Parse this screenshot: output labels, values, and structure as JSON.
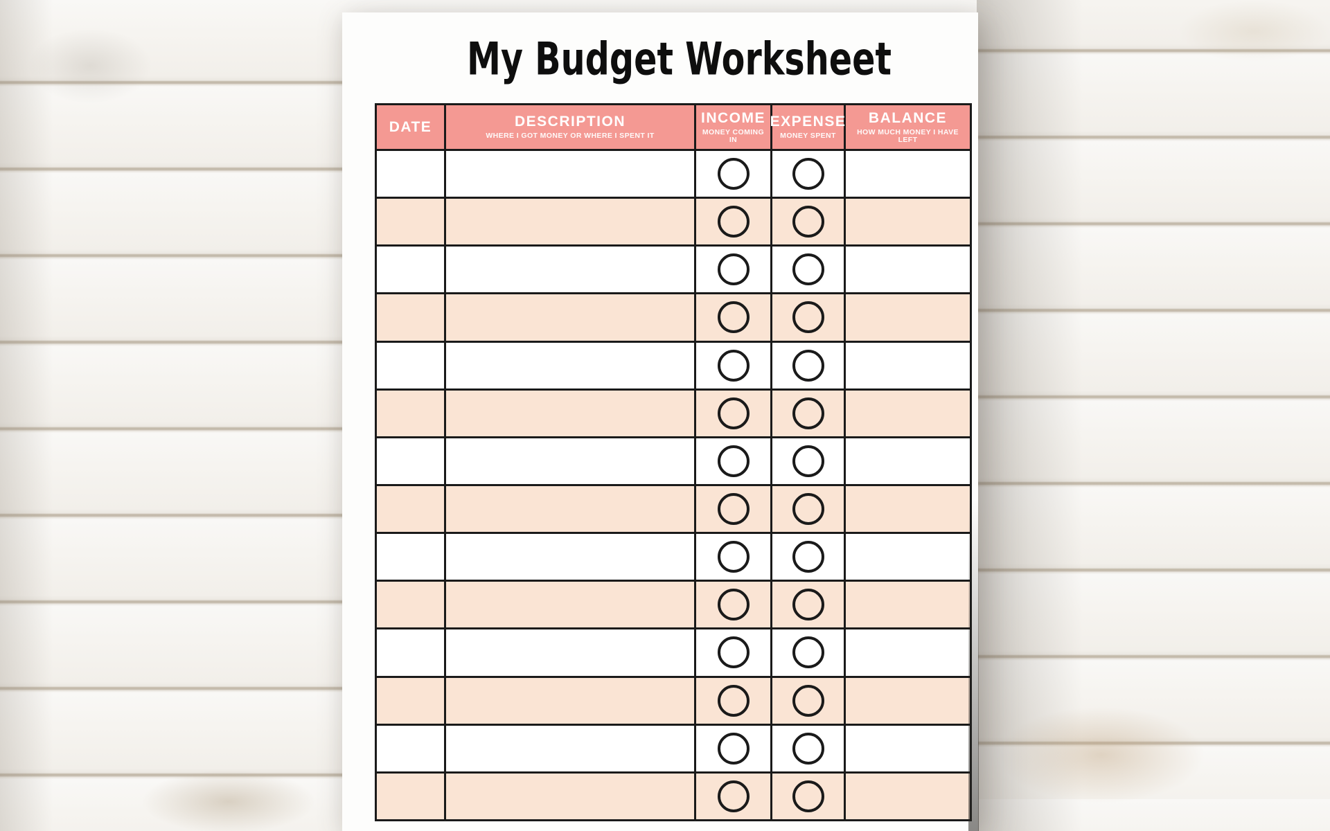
{
  "page": {
    "title": "My Budget Worksheet"
  },
  "table": {
    "columns": [
      {
        "key": "date",
        "label": "DATE",
        "sublabel": ""
      },
      {
        "key": "description",
        "label": "DESCRIPTION",
        "sublabel": "WHERE I GOT MONEY OR WHERE I SPENT IT"
      },
      {
        "key": "income",
        "label": "INCOME",
        "sublabel": "MONEY COMING IN"
      },
      {
        "key": "expense",
        "label": "EXPENSE",
        "sublabel": "MONEY SPENT"
      },
      {
        "key": "balance",
        "label": "BALANCE",
        "sublabel": "HOW MUCH MONEY I HAVE LEFT"
      }
    ],
    "rows": [
      {
        "date": "",
        "description": "",
        "income_marked": false,
        "expense_marked": false,
        "balance": ""
      },
      {
        "date": "",
        "description": "",
        "income_marked": false,
        "expense_marked": false,
        "balance": ""
      },
      {
        "date": "",
        "description": "",
        "income_marked": false,
        "expense_marked": false,
        "balance": ""
      },
      {
        "date": "",
        "description": "",
        "income_marked": false,
        "expense_marked": false,
        "balance": ""
      },
      {
        "date": "",
        "description": "",
        "income_marked": false,
        "expense_marked": false,
        "balance": ""
      },
      {
        "date": "",
        "description": "",
        "income_marked": false,
        "expense_marked": false,
        "balance": ""
      },
      {
        "date": "",
        "description": "",
        "income_marked": false,
        "expense_marked": false,
        "balance": ""
      },
      {
        "date": "",
        "description": "",
        "income_marked": false,
        "expense_marked": false,
        "balance": ""
      },
      {
        "date": "",
        "description": "",
        "income_marked": false,
        "expense_marked": false,
        "balance": ""
      },
      {
        "date": "",
        "description": "",
        "income_marked": false,
        "expense_marked": false,
        "balance": ""
      },
      {
        "date": "",
        "description": "",
        "income_marked": false,
        "expense_marked": false,
        "balance": ""
      },
      {
        "date": "",
        "description": "",
        "income_marked": false,
        "expense_marked": false,
        "balance": ""
      },
      {
        "date": "",
        "description": "",
        "income_marked": false,
        "expense_marked": false,
        "balance": ""
      },
      {
        "date": "",
        "description": "",
        "income_marked": false,
        "expense_marked": false,
        "balance": ""
      }
    ]
  },
  "theme": {
    "header_bg": "#f49993",
    "row_bg": "#ffffff",
    "row_alt_bg": "#fae4d4",
    "border": "#1a1a1a",
    "paper": "#fdfdfc"
  }
}
